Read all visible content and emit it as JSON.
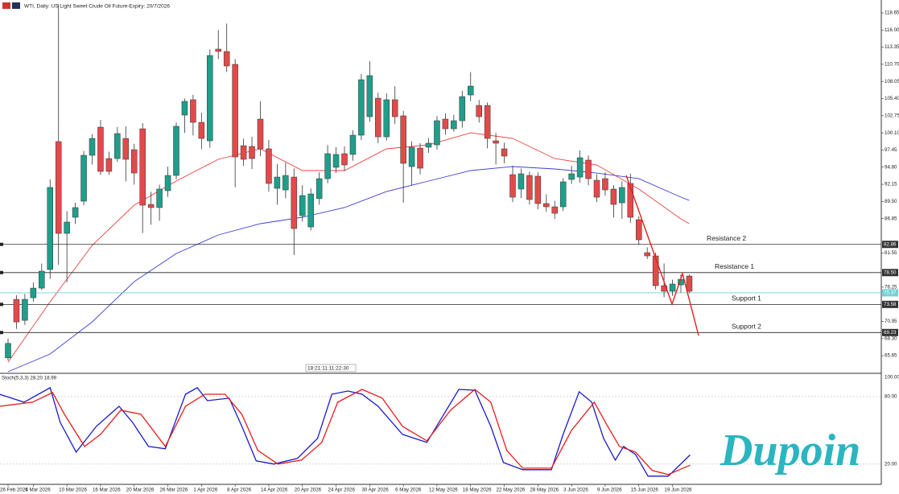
{
  "header": {
    "title": "WTI, Daily:  US Light Sweet Crude Oil Future-Expiry: 20/7/2026",
    "countdown": "18:21:11:11:22:30"
  },
  "logo": "Dupoin",
  "chart_data": {
    "type": "candlestick",
    "categories": [
      "26 Feb 2026",
      null,
      null,
      "4 Mar 2026",
      null,
      null,
      null,
      "10 Mar 2026",
      null,
      null,
      null,
      "16 Mar 2026",
      null,
      null,
      null,
      "20 Mar 2026",
      null,
      null,
      null,
      "26 Mar 2026",
      null,
      null,
      null,
      "1 Apr 2026",
      null,
      null,
      null,
      "8 Apr 2026",
      null,
      null,
      null,
      "14 Apr 2026",
      null,
      null,
      null,
      "20 Apr 2026",
      null,
      null,
      null,
      "24 Apr 2026",
      null,
      null,
      null,
      "30 Apr 2026",
      null,
      null,
      null,
      "6 May 2026",
      null,
      null,
      null,
      "12 May 2026",
      null,
      null,
      null,
      "18 May 2026",
      null,
      null,
      null,
      "22 May 2026",
      null,
      null,
      null,
      "28 May 2026",
      null,
      null,
      null,
      "3 Jun 2026",
      null,
      null,
      null,
      "9 Jun 2026",
      null,
      null,
      null,
      "15 Jun 2026",
      null,
      null,
      null,
      "19 Jun 2026",
      null,
      null
    ],
    "open": [
      65.31,
      74.36,
      71.12,
      74.61,
      76.1,
      78.97,
      98.75,
      84.56,
      87.05,
      89.54,
      96.63,
      100.98,
      96.13,
      96.13,
      99.24,
      97.5,
      100.73,
      89.04,
      88.55,
      91.16,
      93.52,
      102.85,
      105.22,
      101.73,
      98.87,
      113.05,
      112.68,
      110.69,
      98.12,
      98.0,
      102.23,
      97.63,
      91.53,
      91.28,
      93.27,
      87.3,
      85.56,
      89.94,
      93.02,
      94.77,
      96.88,
      96.76,
      99.74,
      102.6,
      105.46,
      99.49,
      105.22,
      102.73,
      94.89,
      97.75,
      97.88,
      98.25,
      102.23,
      100.73,
      101.98,
      105.96,
      104.34,
      104.34,
      98.87,
      97.63,
      93.64,
      91.41,
      93.52,
      93.4,
      89.17,
      88.67,
      88.67,
      92.9,
      93.27,
      95.89,
      92.77,
      93.02,
      91.41,
      89.29,
      92.28,
      86.68,
      81.58,
      81.08,
      76.48,
      75.61,
      76.6,
      77.97
    ],
    "high": [
      68.3,
      75.0,
      75.2,
      77.0,
      79.9,
      92.9,
      120.0,
      88.0,
      89.3,
      97.3,
      99.9,
      102.1,
      97.2,
      101.0,
      101.1,
      98.4,
      101.6,
      91.0,
      92.1,
      94.9,
      101.7,
      105.4,
      106.0,
      103.2,
      113.0,
      116.0,
      117.0,
      111.5,
      99.2,
      99.5,
      105.0,
      99.0,
      95.3,
      95.5,
      94.6,
      92.0,
      91.5,
      94.0,
      98.2,
      97.9,
      98.0,
      100.5,
      109.2,
      111.2,
      106.3,
      106.2,
      107.3,
      103.5,
      98.8,
      98.5,
      99.3,
      102.7,
      103.1,
      102.9,
      106.6,
      109.5,
      105.2,
      104.8,
      100.1,
      98.6,
      95.0,
      94.6,
      94.1,
      94.0,
      90.6,
      89.6,
      93.1,
      95.0,
      97.4,
      96.6,
      93.7,
      94.0,
      92.0,
      92.6,
      93.8,
      87.2,
      82.4,
      81.6,
      79.9,
      77.4,
      78.2,
      78.2
    ],
    "low": [
      64.9,
      69.8,
      70.4,
      74.0,
      75.8,
      77.5,
      79.7,
      77.0,
      86.0,
      88.9,
      95.2,
      93.6,
      93.6,
      95.6,
      92.6,
      92.1,
      84.6,
      85.9,
      86.5,
      90.2,
      92.9,
      100.1,
      99.7,
      97.6,
      97.8,
      111.5,
      109.5,
      91.7,
      95.0,
      94.5,
      96.5,
      91.0,
      89.0,
      90.0,
      81.2,
      86.4,
      85.0,
      89.0,
      92.3,
      93.9,
      94.2,
      95.8,
      99.0,
      101.8,
      98.5,
      98.9,
      101.5,
      89.3,
      92.0,
      93.7,
      97.0,
      97.5,
      99.8,
      100.3,
      100.9,
      105.0,
      101.7,
      97.7,
      95.2,
      95.4,
      89.4,
      90.0,
      89.0,
      88.3,
      87.9,
      86.8,
      88.0,
      92.2,
      92.4,
      92.0,
      89.4,
      90.4,
      87.0,
      86.8,
      86.2,
      82.8,
      80.6,
      75.9,
      74.7,
      74.9,
      75.4,
      75.3
    ],
    "close": [
      67.55,
      70.87,
      74.36,
      76.1,
      78.72,
      91.66,
      84.56,
      86.31,
      88.55,
      96.63,
      99.24,
      94.14,
      94.14,
      99.99,
      96.01,
      93.89,
      88.92,
      88.55,
      91.41,
      93.52,
      101.11,
      104.97,
      101.73,
      99.24,
      112.06,
      112.68,
      110.44,
      96.38,
      96.01,
      96.13,
      97.63,
      92.28,
      93.27,
      93.52,
      85.31,
      90.41,
      90.66,
      93.02,
      96.88,
      96.76,
      95.14,
      99.74,
      108.32,
      108.95,
      99.49,
      105.22,
      102.6,
      95.39,
      97.88,
      94.64,
      98.5,
      101.98,
      100.73,
      101.98,
      105.71,
      107.33,
      102.6,
      99.24,
      98.5,
      96.51,
      90.16,
      93.77,
      89.79,
      89.17,
      88.67,
      87.67,
      92.53,
      93.77,
      96.26,
      93.02,
      90.16,
      91.28,
      89.04,
      91.66,
      87.05,
      83.57,
      81.08,
      76.48,
      75.61,
      76.73,
      77.47,
      75.61
    ],
    "up_color": "#1f9e8a",
    "down_color": "#e24a4a",
    "ylim": [
      63.05,
      120.64
    ],
    "yticks": [
      118.65,
      {
        "value": 116,
        "label": "116.00"
      },
      113.35,
      {
        "value": 110.7,
        "label": "110.70"
      },
      108.05,
      {
        "value": 105.4,
        "label": "105.40"
      },
      102.75,
      {
        "value": 100.1,
        "label": "100.10"
      },
      97.45,
      {
        "value": 94.8,
        "label": "94.80"
      },
      92.15,
      {
        "value": 89.5,
        "label": "89.50"
      },
      86.85,
      81.55,
      76.25,
      70.95,
      {
        "value": 68.3,
        "label": "68.30"
      },
      65.65
    ],
    "moving_averages": [
      {
        "color": "#e8413b",
        "x": [
          0,
          5,
          10,
          15,
          20,
          25,
          30,
          35,
          40,
          45,
          50,
          55,
          60,
          65,
          70,
          75,
          80,
          81
        ],
        "values": [
          64.66,
          73.99,
          82.7,
          88.92,
          92.65,
          96.01,
          97.63,
          94.27,
          94.27,
          97.63,
          98.25,
          100.11,
          99.24,
          96.13,
          95.14,
          91.41,
          86.8,
          86.06
        ]
      },
      {
        "color": "#3b3fd6",
        "x": [
          0,
          5,
          10,
          15,
          20,
          25,
          30,
          35,
          40,
          45,
          50,
          55,
          60,
          65,
          70,
          75,
          80,
          81
        ],
        "values": [
          63.17,
          65.91,
          70.87,
          77.1,
          81.45,
          84.32,
          86.06,
          87.05,
          88.55,
          91.03,
          92.65,
          94.27,
          94.89,
          94.52,
          93.89,
          93.02,
          90.16,
          89.66
        ]
      }
    ],
    "levels": {
      "names": [
        "Resistance 2",
        "Resistance 1",
        "Support 1",
        "Support 2"
      ],
      "values": [
        82.86,
        78.5,
        73.58,
        69.23
      ],
      "value_labels": [
        "82.86",
        "78.50",
        "73.58",
        "69.23"
      ],
      "color": "#222"
    },
    "last_price": 75.37,
    "last_color": "#6fd3d3",
    "stoch": {
      "title": "Stoch(5,3,3) 28.20 18.99",
      "ylim": [
        2,
        100
      ],
      "yticks": [
        {
          "value": 100,
          "label": "100.00"
        },
        {
          "value": 80,
          "label": "80.00"
        },
        {
          "value": 20,
          "label": "20.00"
        }
      ],
      "series": [
        {
          "color": "#1a1ac8",
          "x": [
            -1.0,
            1.9,
            5.0,
            6.2,
            8.1,
            10.5,
            13.2,
            14.8,
            16.7,
            18.7,
            21.1,
            22.5,
            23.7,
            26.3,
            27.8,
            29.5,
            31.6,
            34.4,
            36.8,
            38.5,
            40.4,
            42.1,
            44.0,
            46.9,
            49.8,
            53.6,
            55.5,
            57.4,
            58.9,
            61.2,
            64.6,
            66.0,
            67.9,
            69.4,
            70.8,
            72.2,
            73.2,
            74.6,
            76.1,
            78.5,
            81.1
          ],
          "values": [
            82.1,
            75.0,
            87.9,
            57.1,
            30.7,
            53.6,
            71.4,
            57.1,
            35.7,
            33.6,
            82.1,
            87.9,
            76.4,
            78.6,
            53.6,
            22.9,
            20.0,
            25.0,
            42.9,
            82.1,
            85.0,
            82.1,
            71.4,
            46.4,
            39.3,
            86.4,
            85.7,
            53.6,
            21.4,
            15.0,
            15.0,
            46.4,
            84.3,
            75.0,
            42.9,
            23.6,
            35.7,
            28.6,
            9.3,
            9.3,
            28.2
          ]
        },
        {
          "color": "#e81c1c",
          "x": [
            -1.0,
            2.9,
            5.3,
            6.7,
            9.1,
            11.0,
            13.4,
            15.8,
            18.7,
            21.1,
            23.4,
            25.8,
            27.8,
            29.7,
            32.1,
            34.9,
            37.3,
            39.2,
            42.1,
            44.5,
            46.9,
            49.8,
            52.6,
            55.5,
            57.4,
            59.3,
            61.2,
            64.6,
            67.0,
            69.7,
            71.3,
            72.7,
            74.6,
            76.6,
            78.5,
            81.1
          ],
          "values": [
            71.4,
            75.0,
            83.6,
            64.3,
            35.7,
            46.4,
            67.9,
            64.3,
            35.7,
            71.4,
            82.1,
            82.1,
            64.3,
            32.1,
            20.0,
            23.6,
            39.3,
            75.0,
            86.4,
            78.6,
            53.6,
            40.7,
            67.9,
            86.4,
            75.0,
            32.1,
            16.4,
            16.4,
            50.0,
            75.0,
            53.6,
            35.7,
            30.7,
            14.3,
            10.7,
            18.99
          ]
        }
      ]
    }
  }
}
